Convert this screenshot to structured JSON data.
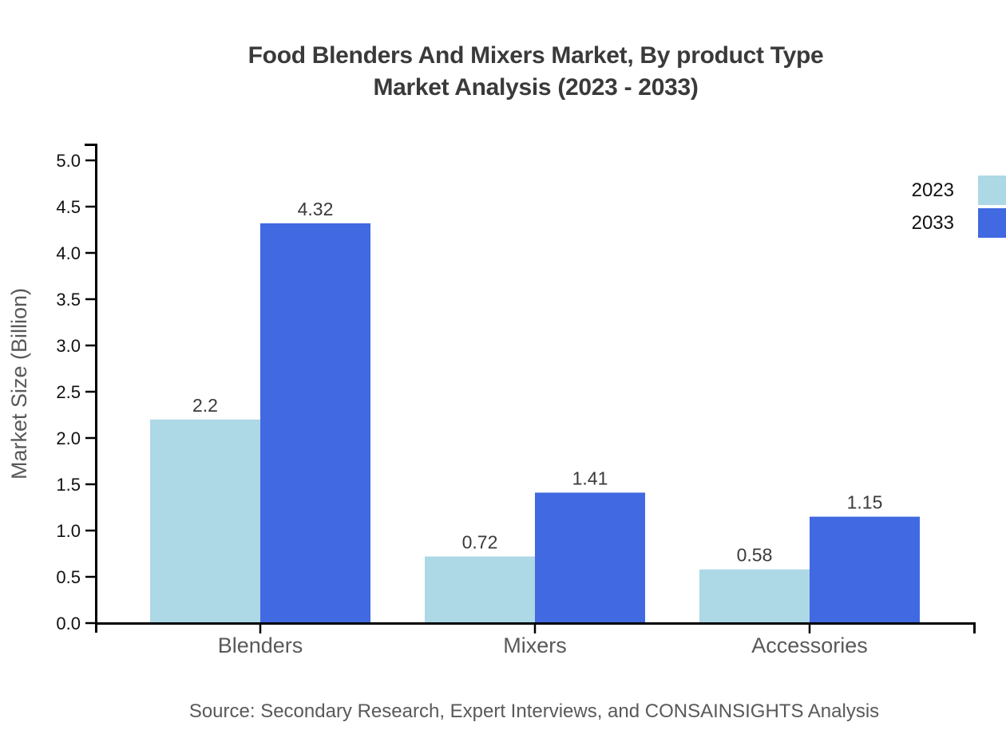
{
  "chart_data": {
    "type": "bar",
    "title_line1": "Food Blenders And Mixers Market, By product Type",
    "title_line2": "Market Analysis (2023 - 2033)",
    "ylabel": "Market Size (Billion)",
    "xlabel": "",
    "categories": [
      "Blenders",
      "Mixers",
      "Accessories"
    ],
    "series": [
      {
        "name": "2023",
        "color": "#ADD8E6",
        "values": [
          2.2,
          0.72,
          0.58
        ]
      },
      {
        "name": "2033",
        "color": "#4169E1",
        "values": [
          4.32,
          1.41,
          1.15
        ]
      }
    ],
    "value_labels": [
      [
        "2.2",
        "0.72",
        "0.58"
      ],
      [
        "4.32",
        "1.41",
        "1.15"
      ]
    ],
    "ylim": [
      0,
      5
    ],
    "ytick_step": 0.5,
    "grid": false,
    "legend_position": "top-right",
    "colors": {
      "axis": "#000000",
      "tick_label": "#111111",
      "value_label": "#3a3a3a",
      "category_label": "#595959",
      "axis_title": "#595959",
      "title": "#3a3a3a",
      "source": "#595959"
    },
    "source": "Source: Secondary Research, Expert Interviews, and CONSAINSIGHTS Analysis"
  }
}
